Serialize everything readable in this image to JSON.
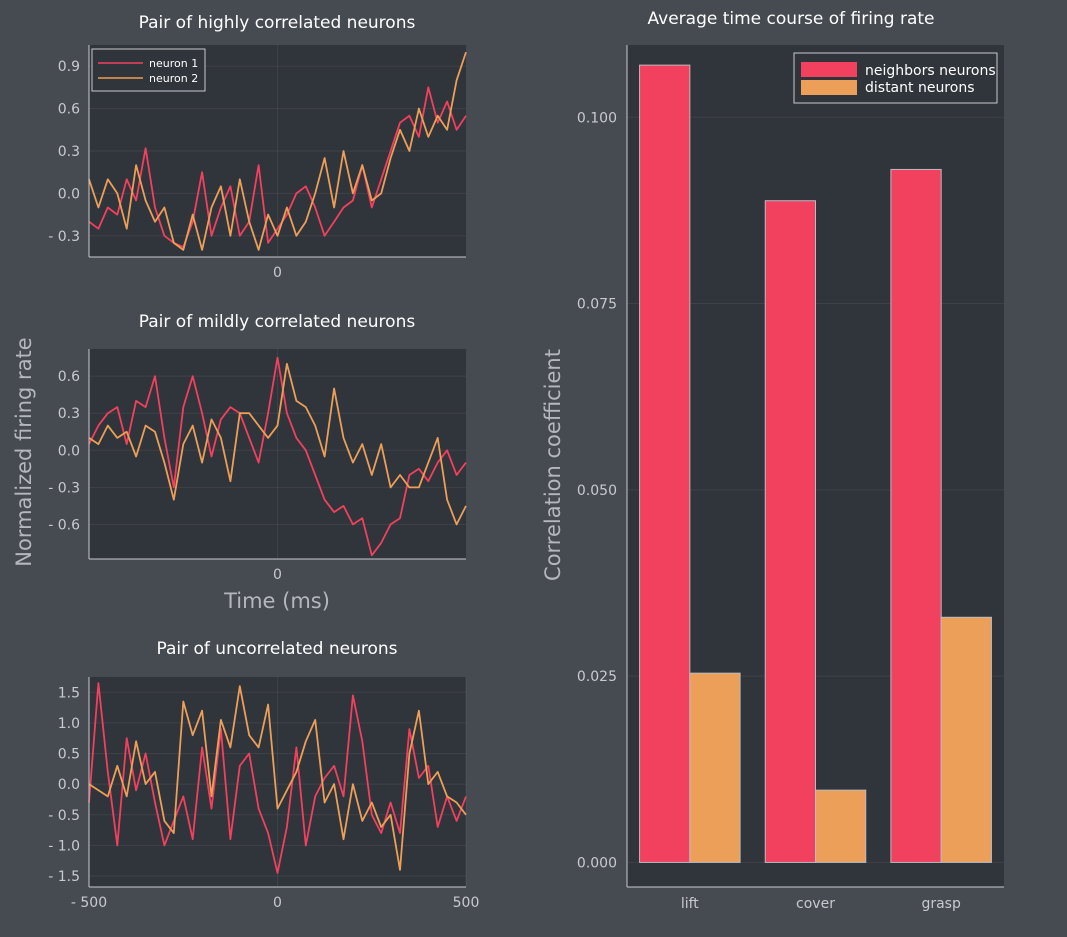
{
  "colors": {
    "background": "#464b52",
    "panel": "#30343b",
    "series1": "#f2405f",
    "series2": "#ec9f58",
    "text_title": "#ffffff",
    "text_tick": "#c8cacd",
    "text_label": "#b4b7bb"
  },
  "chart_data": [
    {
      "type": "line",
      "title": "Pair of highly correlated neurons",
      "xlabel": "",
      "ylabel": "",
      "xlim": [
        -500,
        500
      ],
      "ylim": [
        -0.45,
        1.05
      ],
      "x_ticks": [
        0
      ],
      "x_tick_labels": [
        "0"
      ],
      "y_ticks": [
        0.9,
        0.6,
        0.3,
        0.0,
        -0.3
      ],
      "y_tick_labels": [
        "0.9",
        "0.6",
        "0.3",
        "0.0",
        "- 0.3"
      ],
      "legend": "top-left",
      "grid": true,
      "x": [
        -500,
        -475,
        -450,
        -425,
        -400,
        -375,
        -350,
        -325,
        -300,
        -275,
        -250,
        -225,
        -200,
        -175,
        -150,
        -125,
        -100,
        -75,
        -50,
        -25,
        0,
        25,
        50,
        75,
        100,
        125,
        150,
        175,
        200,
        225,
        250,
        275,
        300,
        325,
        350,
        375,
        400,
        425,
        450,
        475,
        500
      ],
      "series": [
        {
          "name": "neuron 1",
          "values": [
            -0.2,
            -0.25,
            -0.1,
            -0.15,
            0.1,
            -0.05,
            0.32,
            -0.1,
            -0.3,
            -0.35,
            -0.38,
            -0.2,
            0.15,
            -0.3,
            -0.1,
            0.05,
            -0.3,
            -0.2,
            0.2,
            -0.35,
            -0.25,
            -0.15,
            0.0,
            0.05,
            -0.1,
            -0.3,
            -0.2,
            -0.1,
            -0.05,
            0.2,
            -0.1,
            0.1,
            0.3,
            0.5,
            0.55,
            0.4,
            0.75,
            0.5,
            0.65,
            0.45,
            0.55
          ]
        },
        {
          "name": "neuron 2",
          "values": [
            0.1,
            -0.1,
            0.1,
            0.0,
            -0.25,
            0.2,
            -0.05,
            -0.2,
            -0.1,
            -0.35,
            -0.4,
            -0.15,
            -0.4,
            -0.1,
            0.05,
            -0.3,
            0.1,
            -0.2,
            -0.4,
            -0.15,
            -0.3,
            -0.1,
            -0.3,
            -0.2,
            0.0,
            0.25,
            -0.1,
            0.3,
            0.0,
            0.2,
            -0.05,
            0.0,
            0.25,
            0.45,
            0.3,
            0.6,
            0.4,
            0.55,
            0.45,
            0.8,
            1.0
          ]
        }
      ]
    },
    {
      "type": "line",
      "title": "Pair of mildly correlated neurons",
      "xlabel": "Time (ms)",
      "ylabel": "Normalized firing rate",
      "xlim": [
        -500,
        500
      ],
      "ylim": [
        -0.88,
        0.82
      ],
      "x_ticks": [
        0
      ],
      "x_tick_labels": [
        "0"
      ],
      "y_ticks": [
        0.6,
        0.3,
        0.0,
        -0.3,
        -0.6
      ],
      "y_tick_labels": [
        "0.6",
        "0.3",
        "0.0",
        "- 0.3",
        "- 0.6"
      ],
      "grid": true,
      "x": [
        -500,
        -475,
        -450,
        -425,
        -400,
        -375,
        -350,
        -325,
        -300,
        -275,
        -250,
        -225,
        -200,
        -175,
        -150,
        -125,
        -100,
        -75,
        -50,
        -25,
        0,
        25,
        50,
        75,
        100,
        125,
        150,
        175,
        200,
        225,
        250,
        275,
        300,
        325,
        350,
        375,
        400,
        425,
        450,
        475,
        500
      ],
      "series": [
        {
          "name": "neuron 1",
          "values": [
            0.05,
            0.2,
            0.3,
            0.35,
            0.05,
            0.4,
            0.35,
            0.6,
            0.1,
            -0.3,
            0.35,
            0.6,
            0.3,
            -0.05,
            0.25,
            0.35,
            0.3,
            0.1,
            -0.1,
            0.3,
            0.75,
            0.3,
            0.1,
            0.0,
            -0.2,
            -0.4,
            -0.5,
            -0.45,
            -0.6,
            -0.55,
            -0.85,
            -0.75,
            -0.6,
            -0.55,
            -0.2,
            -0.15,
            -0.25,
            -0.1,
            0.0,
            -0.2,
            -0.1
          ]
        },
        {
          "name": "neuron 2",
          "values": [
            0.1,
            0.05,
            0.2,
            0.1,
            0.15,
            -0.05,
            0.2,
            0.15,
            -0.1,
            -0.4,
            0.05,
            0.2,
            -0.1,
            0.25,
            0.1,
            -0.25,
            0.3,
            0.3,
            0.2,
            0.1,
            0.2,
            0.7,
            0.4,
            0.35,
            0.2,
            -0.05,
            0.5,
            0.1,
            -0.1,
            0.05,
            -0.2,
            0.05,
            -0.3,
            -0.2,
            -0.3,
            -0.3,
            -0.1,
            0.1,
            -0.4,
            -0.6,
            -0.45
          ]
        }
      ]
    },
    {
      "type": "line",
      "title": "Pair of uncorrelated neurons",
      "xlabel": "",
      "ylabel": "",
      "xlim": [
        -500,
        500
      ],
      "ylim": [
        -1.68,
        1.75
      ],
      "x_ticks": [
        -500,
        0,
        500
      ],
      "x_tick_labels": [
        "- 500",
        "0",
        "500"
      ],
      "y_ticks": [
        1.5,
        1.0,
        0.5,
        0.0,
        -0.5,
        -1.0,
        -1.5
      ],
      "y_tick_labels": [
        "1.5",
        "1.0",
        "0.5",
        "0.0",
        "- 0.5",
        "- 1.0",
        "- 1.5"
      ],
      "grid": true,
      "x": [
        -500,
        -475,
        -450,
        -425,
        -400,
        -375,
        -350,
        -325,
        -300,
        -275,
        -250,
        -225,
        -200,
        -175,
        -150,
        -125,
        -100,
        -75,
        -50,
        -25,
        0,
        25,
        50,
        75,
        100,
        125,
        150,
        175,
        200,
        225,
        250,
        275,
        300,
        325,
        350,
        375,
        400,
        425,
        450,
        475,
        500
      ],
      "series": [
        {
          "name": "neuron 1",
          "values": [
            -0.3,
            1.65,
            0.2,
            -1.0,
            0.75,
            -0.1,
            0.5,
            -0.3,
            -1.0,
            -0.6,
            -0.2,
            -0.9,
            0.6,
            -0.4,
            0.9,
            -0.9,
            0.3,
            0.5,
            -0.4,
            -0.8,
            -1.45,
            -0.7,
            0.6,
            -1.0,
            -0.2,
            0.1,
            0.3,
            -0.2,
            1.45,
            0.7,
            -0.5,
            -0.8,
            -0.3,
            -0.8,
            0.9,
            0.1,
            0.3,
            -0.7,
            -0.2,
            -0.6,
            -0.2
          ]
        },
        {
          "name": "neuron 2",
          "values": [
            0.0,
            -0.1,
            -0.2,
            0.3,
            -0.2,
            0.7,
            0.0,
            0.2,
            -0.6,
            -0.8,
            1.35,
            0.8,
            1.2,
            -0.2,
            1.05,
            0.6,
            1.6,
            0.8,
            0.6,
            1.3,
            -0.4,
            -0.1,
            0.2,
            0.7,
            1.05,
            -0.3,
            0.0,
            -0.9,
            0.0,
            -0.6,
            -0.3,
            -0.7,
            -0.5,
            -1.4,
            0.5,
            1.2,
            0.0,
            0.2,
            -0.2,
            -0.3,
            -0.5
          ]
        }
      ]
    },
    {
      "type": "bar",
      "title": "Average time course of firing rate",
      "xlabel": "",
      "ylabel": "Correlation coefficient",
      "categories": [
        "lift",
        "cover",
        "grasp"
      ],
      "ylim": [
        -0.0033,
        0.1097
      ],
      "y_ticks": [
        0.0,
        0.025,
        0.05,
        0.075,
        0.1
      ],
      "y_tick_labels": [
        "0.000",
        "0.025",
        "0.050",
        "0.075",
        "0.100"
      ],
      "legend": "top-right",
      "grid": true,
      "series": [
        {
          "name": "neighbors neurons",
          "values": [
            0.107,
            0.0888,
            0.093
          ]
        },
        {
          "name": "distant neurons",
          "values": [
            0.0254,
            0.0097,
            0.0329
          ]
        }
      ]
    }
  ]
}
